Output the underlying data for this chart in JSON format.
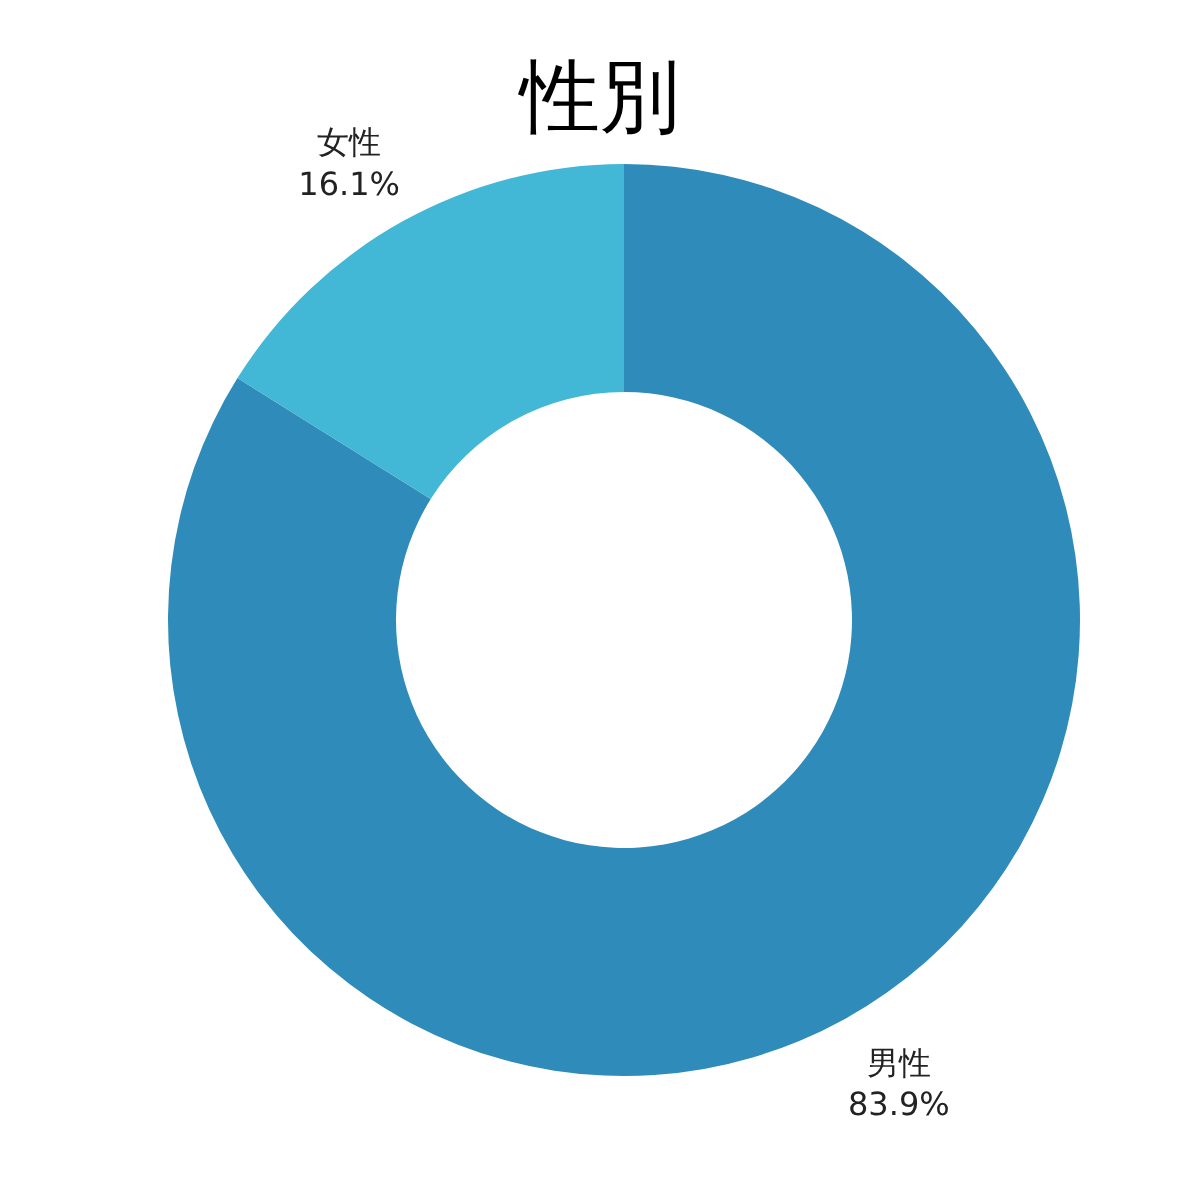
{
  "chart_data": {
    "type": "donut",
    "title": "性別",
    "categories": [
      "男性",
      "女性"
    ],
    "values": [
      83.9,
      16.1
    ],
    "colors": [
      "#2e8bba",
      "#42b7d6"
    ],
    "value_labels": [
      "83.9%",
      "16.1%"
    ]
  }
}
